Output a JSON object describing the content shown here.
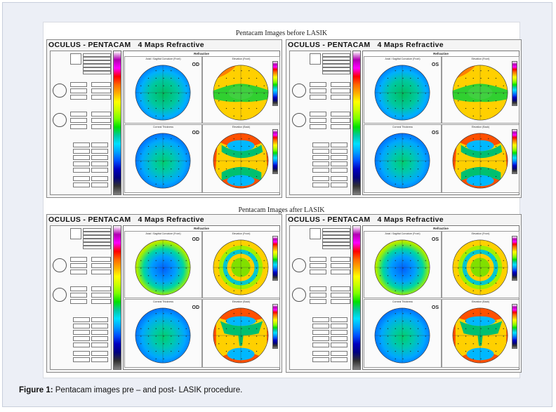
{
  "titles": {
    "before": "Pentacam Images before LASIK",
    "after": "Pentacam Images after LASIK"
  },
  "panels": [
    {
      "id": "before-od",
      "header": "OCULUS - PENTACAM",
      "subtitle": "4 Maps Refractive",
      "eye": "OD",
      "section": "Refractive",
      "maps": [
        {
          "caption": "Axial / Sagittal Curvature (Front)",
          "pattern": "curv-pre"
        },
        {
          "caption": "Elevation (Front)",
          "pattern": "elev-front-pre"
        },
        {
          "caption": "Corneal Thickness",
          "pattern": "thick"
        },
        {
          "caption": "Elevation (Back)",
          "pattern": "elev-back-pre"
        }
      ]
    },
    {
      "id": "before-os",
      "header": "OCULUS - PENTACAM",
      "subtitle": "4 Maps Refractive",
      "eye": "OS",
      "section": "Refractive",
      "maps": [
        {
          "caption": "Axial / Sagittal Curvature (Front)",
          "pattern": "curv-pre"
        },
        {
          "caption": "Elevation (Front)",
          "pattern": "elev-front-pre-os"
        },
        {
          "caption": "Corneal Thickness",
          "pattern": "thick"
        },
        {
          "caption": "Elevation (Back)",
          "pattern": "elev-back-pre"
        }
      ]
    },
    {
      "id": "after-od",
      "header": "OCULUS - PENTACAM",
      "subtitle": "4 Maps Refractive",
      "eye": "OD",
      "section": "Refractive",
      "maps": [
        {
          "caption": "Axial / Sagittal Curvature (Front)",
          "pattern": "curv-post"
        },
        {
          "caption": "Elevation (Front)",
          "pattern": "elev-front-post"
        },
        {
          "caption": "Corneal Thickness",
          "pattern": "thick"
        },
        {
          "caption": "Elevation (Back)",
          "pattern": "elev-back-post"
        }
      ]
    },
    {
      "id": "after-os",
      "header": "OCULUS - PENTACAM",
      "subtitle": "4 Maps Refractive",
      "eye": "OS",
      "section": "Refractive",
      "maps": [
        {
          "caption": "Axial / Sagittal Curvature (Front)",
          "pattern": "curv-post"
        },
        {
          "caption": "Elevation (Front)",
          "pattern": "elev-front-post"
        },
        {
          "caption": "Corneal Thickness",
          "pattern": "thick"
        },
        {
          "caption": "Elevation (Back)",
          "pattern": "elev-back-post"
        }
      ]
    }
  ],
  "caption": {
    "label": "Figure 1:",
    "text": " Pentacam images pre – and post- LASIK procedure."
  },
  "colors": {
    "scale": [
      "#ffffff",
      "#b000b0",
      "#ff00ff",
      "#ff0000",
      "#ff6a00",
      "#ffb000",
      "#ffff00",
      "#c8ff00",
      "#7cff00",
      "#00e000",
      "#00c8a0",
      "#00e0ff",
      "#00a0ff",
      "#0050ff",
      "#0000c0",
      "#000080",
      "#303030",
      "#808080"
    ]
  }
}
